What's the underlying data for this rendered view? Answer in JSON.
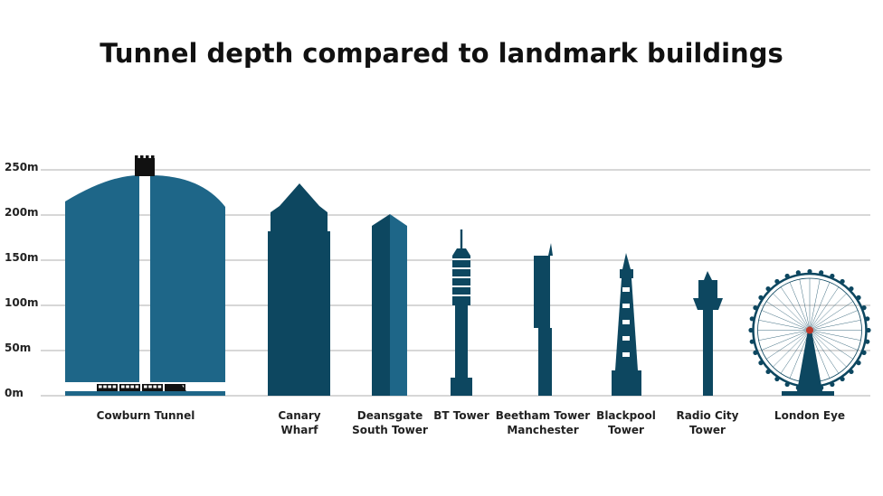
{
  "chart_data": {
    "type": "bar",
    "title": "Tunnel depth compared to landmark buildings",
    "xlabel": "",
    "ylabel": "",
    "ylim": [
      0,
      250
    ],
    "y_ticks": [
      {
        "value": 0,
        "label": "0m"
      },
      {
        "value": 50,
        "label": "50m"
      },
      {
        "value": 100,
        "label": "100m"
      },
      {
        "value": 150,
        "label": "150m"
      },
      {
        "value": 200,
        "label": "200m"
      },
      {
        "value": 250,
        "label": "250m"
      }
    ],
    "grid": true,
    "categories": [
      {
        "key": "cowburn",
        "lines": [
          "Cowburn Tunnel"
        ],
        "value": 244
      },
      {
        "key": "canary",
        "lines": [
          "Canary",
          "Wharf"
        ],
        "value": 235
      },
      {
        "key": "deansgate",
        "lines": [
          "Deansgate",
          "South Tower"
        ],
        "value": 201
      },
      {
        "key": "bt",
        "lines": [
          "BT Tower"
        ],
        "value": 184
      },
      {
        "key": "beetham",
        "lines": [
          "Beetham Tower",
          "Manchester"
        ],
        "value": 169
      },
      {
        "key": "blackpool",
        "lines": [
          "Blackpool",
          "Tower"
        ],
        "value": 158
      },
      {
        "key": "radiocity",
        "lines": [
          "Radio City",
          "Tower"
        ],
        "value": 138
      },
      {
        "key": "londoneye",
        "lines": [
          "London Eye"
        ],
        "value": 135
      }
    ],
    "colors": {
      "tunnel": "#1e6688",
      "building": "#0d4760",
      "building_light": "#1e6688",
      "grid": "#bfbfbf"
    }
  }
}
